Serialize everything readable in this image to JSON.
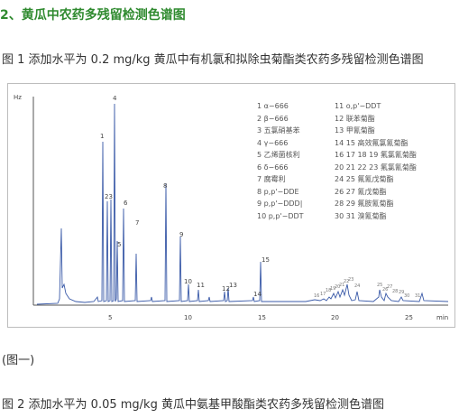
{
  "section_title": "2、黄瓜中农药多残留检测色谱图",
  "figure1": {
    "caption": "图 1 添加水平为 0.2 mg/kg 黄瓜中有机氯和拟除虫菊酯类农药多残留检测色谱图",
    "y_unit": "Hz",
    "x_unit": "min",
    "x_ticks": [
      "5",
      "10",
      "15",
      "20",
      "25"
    ],
    "legend": [
      "1  α−666",
      "2  β−666",
      "3  五氯硝基苯",
      "4  γ−666",
      "5  乙烯菌核利",
      "6  δ−666",
      "7  腐霉利",
      "8  p,p'−DDE",
      "9  p,p'−DDD|",
      "10 p,p'−DDT",
      "11 o,p'−DDT",
      "12 联苯菊酯",
      "13 甲氰菊酯",
      "14 15 高效氟氯氰菊酯",
      "16 17 18 19 氟氯氰菊酯",
      "20 21 22 23 氟氯氰菊酯",
      "24 25 氟氰戊菊酯",
      "26 27 氰戊菊酯",
      "28 29 氟胺氰菊酯",
      "30 31 溴氰菊酯"
    ],
    "peak_labels": [
      "1",
      "23",
      "4",
      "5",
      "6",
      "7",
      "8",
      "9",
      "10",
      "11",
      "12",
      "13",
      "14",
      "15",
      "16",
      "17",
      "18",
      "19",
      "20",
      "21",
      "22",
      "23",
      "24",
      "25",
      "26",
      "27",
      "28",
      "29",
      "30",
      "31"
    ]
  },
  "figure1_sublabel": "(图一)",
  "figure2": {
    "caption": "图 2 添加水平为 0.05 mg/kg 黄瓜中氨基甲酸酯类农药多残留检测色谱图"
  }
}
